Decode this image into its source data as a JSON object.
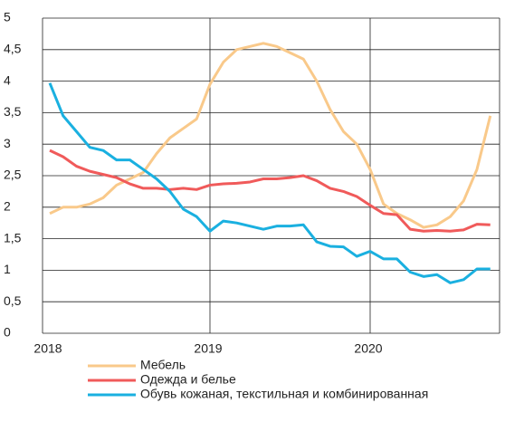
{
  "chart_data": {
    "type": "line",
    "categories": [
      "2018",
      null,
      null,
      null,
      null,
      null,
      null,
      null,
      null,
      null,
      null,
      null,
      "2019",
      null,
      null,
      null,
      null,
      null,
      null,
      null,
      null,
      null,
      null,
      null,
      "2020",
      null,
      null,
      null,
      null,
      null,
      null,
      null,
      null,
      null
    ],
    "series": [
      {
        "name": "Мебель",
        "color": "#f9c98a",
        "values": [
          1.9,
          2.0,
          2.0,
          2.05,
          2.15,
          2.35,
          2.45,
          2.55,
          2.85,
          3.1,
          3.25,
          3.4,
          3.95,
          4.3,
          4.5,
          4.55,
          4.6,
          4.55,
          4.45,
          4.35,
          4.0,
          3.55,
          3.2,
          3.0,
          2.6,
          2.05,
          1.9,
          1.8,
          1.68,
          1.72,
          1.85,
          2.1,
          2.6,
          3.45
        ]
      },
      {
        "name": "Одежда и белье",
        "color": "#f05a5a",
        "values": [
          2.9,
          2.8,
          2.65,
          2.57,
          2.52,
          2.47,
          2.37,
          2.3,
          2.3,
          2.28,
          2.3,
          2.28,
          2.35,
          2.37,
          2.38,
          2.4,
          2.45,
          2.45,
          2.47,
          2.5,
          2.42,
          2.3,
          2.25,
          2.17,
          2.03,
          1.9,
          1.88,
          1.65,
          1.62,
          1.63,
          1.62,
          1.64,
          1.73,
          1.72
        ]
      },
      {
        "name": "Обувь кожаная, текстильная и комбинированная",
        "color": "#1ab0e0",
        "values": [
          3.97,
          3.45,
          3.2,
          2.95,
          2.9,
          2.75,
          2.75,
          2.6,
          2.45,
          2.25,
          1.97,
          1.85,
          1.62,
          1.78,
          1.75,
          1.7,
          1.65,
          1.7,
          1.7,
          1.72,
          1.45,
          1.38,
          1.37,
          1.22,
          1.3,
          1.18,
          1.18,
          0.97,
          0.9,
          0.93,
          0.8,
          0.85,
          1.02,
          1.02
        ]
      }
    ],
    "ylim": [
      0,
      5
    ],
    "yticks": [
      0,
      {
        "value": 0.5,
        "label": "0,5"
      },
      1,
      {
        "value": 1.5,
        "label": "1,5"
      },
      2,
      {
        "value": 2.5,
        "label": "2,5"
      },
      3,
      {
        "value": 3.5,
        "label": "3,5"
      },
      4,
      {
        "value": 4.5,
        "label": "4,5"
      },
      5
    ],
    "grid": true
  }
}
